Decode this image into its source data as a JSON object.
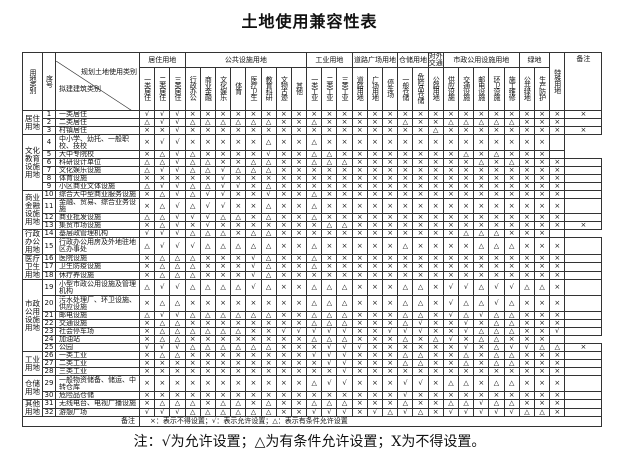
{
  "title": "土地使用兼容性表",
  "note": "注：√为允许设置；△为有条件允许设置；X为不得设置。",
  "header": {
    "land_category": "用地类别",
    "seq": "序号",
    "corner_top": "规划土地使用类别",
    "corner_bottom": "拟建建筑类别",
    "remark": "备注",
    "groups": [
      {
        "label": "居住用地",
        "span": 3
      },
      {
        "label": "公共设施用地",
        "span": 8
      },
      {
        "label": "工业用地",
        "span": 3
      },
      {
        "label": "道路广场用地",
        "span": 3
      },
      {
        "label": "仓储用地",
        "span": 2
      },
      {
        "label": "对外交通",
        "span": 1
      },
      {
        "label": "市政公用设施用地",
        "span": 5
      },
      {
        "label": "绿地",
        "span": 2
      }
    ],
    "special": "特殊用地",
    "columns": [
      "一类居住",
      "二类居住",
      "三类居住",
      "行政办公",
      "商业金融",
      "文化娱乐",
      "体育",
      "医疗卫生",
      "教育科研",
      "文物古迹",
      "其他",
      "一类工业",
      "二类工业",
      "三类工业",
      "道路用地",
      "广场用地",
      "停车场",
      "一般仓储",
      "危险品仓储",
      "公路用地",
      "供应设施",
      "交通设施",
      "邮电设施",
      "环卫设施",
      "施工维修",
      "公共绿地",
      "生产防护"
    ]
  },
  "categories": [
    {
      "label": "居住用地",
      "rows": 3
    },
    {
      "label": "文化教育设施用地",
      "rows": 6
    },
    {
      "label": "商业金融设施用地",
      "rows": 4
    },
    {
      "label": "行政办公用地",
      "rows": 2
    },
    {
      "label": "医疗卫生用地",
      "rows": 3
    },
    {
      "label": "市政公用设施用地",
      "rows": 7
    },
    {
      "label": "工业用地",
      "rows": 3
    },
    {
      "label": "仓储用地",
      "rows": 2
    },
    {
      "label": "其他用地",
      "rows": 2
    }
  ],
  "rows": [
    {
      "no": "1",
      "name": "一类居住",
      "v": "√√√×××××××××××××××××××××××××××"
    },
    {
      "no": "2",
      "name": "二类居住",
      "v": "△√√△△△△△△××△×××××△××△△△△△×××"
    },
    {
      "no": "3",
      "name": "村镇居住",
      "v": "××√××××××××××××××××△××××××××××"
    },
    {
      "no": "4",
      "name": "中小学、幼托、一般职校、技校",
      "v": "×√√×××××△××△×××××××××××××××",
      "tall": true
    },
    {
      "no": "5",
      "name": "大中专院校",
      "v": "×△√△××××√××△△××××××××△×△×××"
    },
    {
      "no": "6",
      "name": "科研设计单位",
      "v": "△△√△△××△△××△△△××××××××△×△×××"
    },
    {
      "no": "7",
      "name": "文化娱乐设施",
      "v": "△√√△△√△△△×××××××××××××××××××"
    },
    {
      "no": "8",
      "name": "体育设施",
      "v": "×××××√××××××××××××××××××××××"
    },
    {
      "no": "9",
      "name": "小区商业文体设施",
      "v": "△√√△△√√×△×××××××××××××××××××"
    },
    {
      "no": "10",
      "name": "综合大中型商业服务设施",
      "v": "×△√△√√××√××△××××××××××××××××"
    },
    {
      "no": "11",
      "name": "金融、贸易、综合业务设施",
      "v": "×△√△√√××△××△××××××××××××××××"
    },
    {
      "no": "12",
      "name": "商业批发设施",
      "v": "△△√√√△△×△××△××××××××××××××××"
    },
    {
      "no": "13",
      "name": "集贸市场设施",
      "v": "×△√×√×××××××△△×××××××××××××××"
    },
    {
      "no": "14",
      "name": "基层政管理机构",
      "v": "√√√△△△×△△××××××××××××△△△×××"
    },
    {
      "no": "15",
      "name": "行政办公用房及外地驻地区办事处",
      "v": "△√√√△△△△△××△×××××△××××△△△×××",
      "tall": true
    },
    {
      "no": "16",
      "name": "医院设施",
      "v": "×△△△×××√△××△××××××××××××××××"
    },
    {
      "no": "17",
      "name": "卫生防疫设施",
      "v": "×△△△×××√△××△××××××××××××××××"
    },
    {
      "no": "18",
      "name": "休疗养设施",
      "v": "×△△△×××√△×××××××××××××××××××"
    },
    {
      "no": "19",
      "name": "小型市政公用设施及管理机构",
      "v": "△√√△△△△√△××△△△×××△△×√√△√√△△×",
      "tall": true
    },
    {
      "no": "20",
      "name": "污水处理厂、环卫设施、供应设施",
      "v": "×△△××××××××△△△×××△△×√△△√△×××",
      "tall": true
    },
    {
      "no": "21",
      "name": "邮电设施",
      "v": "△√√△△△△△△××△△△×××△△×√△√△△×××"
    },
    {
      "no": "22",
      "name": "交通设施",
      "v": "×△△××××××××△△△×××△√××√×△△×××"
    },
    {
      "no": "23",
      "name": "社会停车场",
      "v": "×△△△△△△××√√√√√××√√√××√△△△××√"
    },
    {
      "no": "24",
      "name": "加油站",
      "v": "×△△××××××××△△△×××△×△√×△△×××"
    },
    {
      "no": "25",
      "name": "公园",
      "v": "√√√△△△△△△×××√√√××××××√×△√√△△×"
    },
    {
      "no": "26",
      "name": "一类工业",
      "v": "×△△××××××××√√√×××△△××△×△△×××"
    },
    {
      "no": "27",
      "name": "二类工业",
      "v": "××××××××××××√√×××△△××△×△△×××"
    },
    {
      "no": "28",
      "name": "三类工业",
      "v": "×××××××××××××√××××××××××××××"
    },
    {
      "no": "29",
      "name": "一般物资储备、储运、中转仓库",
      "v": "×××××××××××△√√×××√√×△△×△△×××",
      "tall": true
    },
    {
      "no": "30",
      "name": "危险品仓储",
      "v": "×××××××××××××××××√××××××××××"
    },
    {
      "no": "31",
      "name": "无线电台、电视广播设施",
      "v": "×△△△×△△×△××△△△×××△××△△√△△×××"
    },
    {
      "no": "32",
      "name": "游憩广场",
      "v": "√√√△△△△△△××√√√×√△√△×√√√√√△△×"
    }
  ],
  "remark_row": {
    "label": "备注",
    "text": "×：表示不得设置；√：表示允许设置；△：表示有条件允许设置"
  },
  "colors": {
    "line": "#333333",
    "text": "#111111"
  }
}
